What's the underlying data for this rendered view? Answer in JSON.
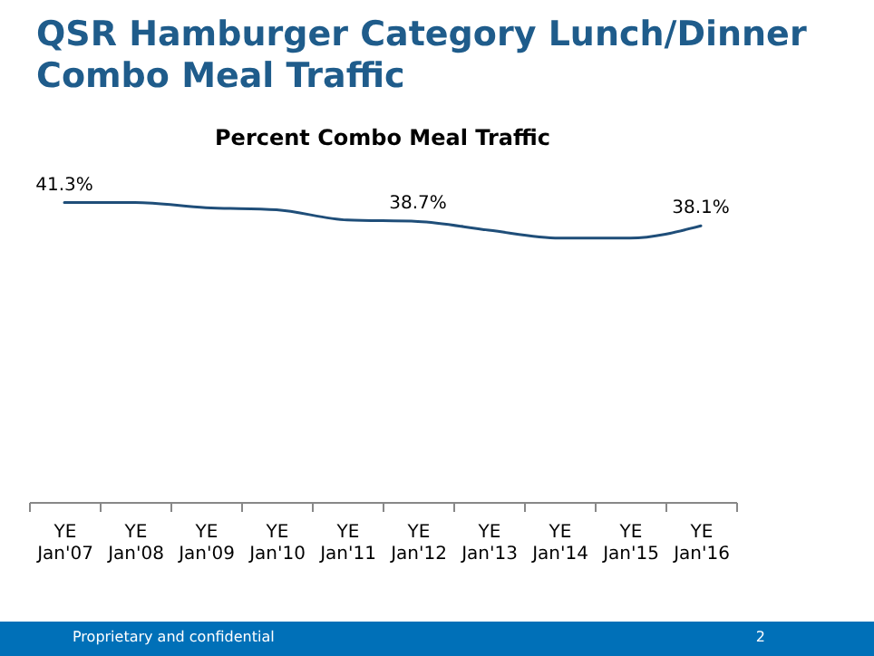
{
  "chart_data": {
    "type": "line",
    "title": "QSR Hamburger Category Lunch/Dinner Combo Meal Traffic",
    "subtitle": "Percent Combo Meal Traffic",
    "categories": [
      "YE\nJan'07",
      "YE\nJan'08",
      "YE\nJan'09",
      "YE\nJan'10",
      "YE\nJan'11",
      "YE\nJan'12",
      "YE\nJan'13",
      "YE\nJan'14",
      "YE\nJan'15",
      "YE\nJan'16"
    ],
    "series": [
      {
        "color": "#1f4e79",
        "values": [
          41.3,
          41.3,
          40.6,
          40.3,
          38.9,
          38.7,
          37.5,
          36.4,
          36.4,
          38.1
        ],
        "value_labels": [
          "41.3%",
          null,
          null,
          null,
          null,
          "38.7%",
          null,
          null,
          null,
          "38.1%"
        ]
      }
    ],
    "tick_labels": "x",
    "grid": false,
    "marker": "none",
    "annotations": [
      "Proprietary and confidential",
      "2"
    ]
  }
}
